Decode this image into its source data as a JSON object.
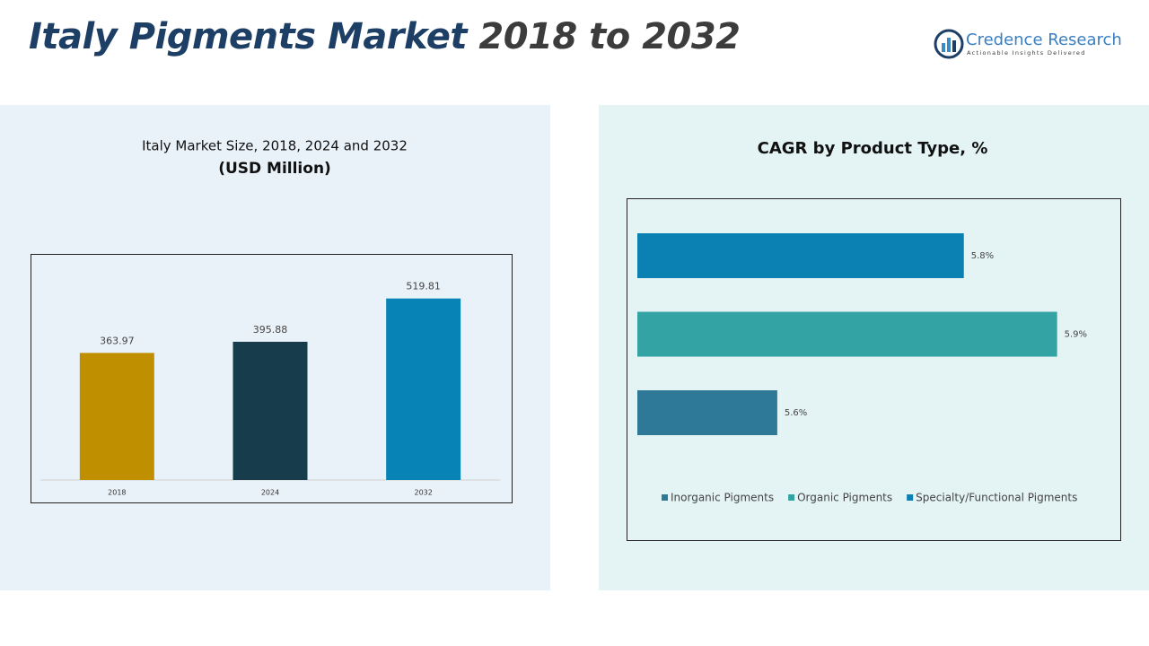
{
  "header": {
    "title_main": "Italy Pigments Market",
    "title_years": "2018 to 2032"
  },
  "logo": {
    "brand": "Credence Research",
    "tagline": "Actionable Insights Delivered"
  },
  "chart_data": [
    {
      "type": "bar",
      "title": "Italy Market Size, 2018, 2024 and 2032",
      "subtitle": "(USD Million)",
      "categories": [
        "2018",
        "2024",
        "2032"
      ],
      "values": [
        363.97,
        395.88,
        519.81
      ],
      "colors": [
        "#c08f00",
        "#173d4d",
        "#0784b5"
      ],
      "ylim": [
        0,
        650
      ]
    },
    {
      "type": "hbar",
      "title": "CAGR by Product Type, %",
      "xlim": [
        5.45,
        5.96
      ],
      "legend": "bottom",
      "series": [
        {
          "name": "Inorganic Pigments",
          "color": "#2e7898",
          "values": [
            5.6
          ],
          "value_labels": [
            "5.6%"
          ]
        },
        {
          "name": "Organic Pigments",
          "color": "#33a4a3",
          "values": [
            5.9
          ],
          "value_labels": [
            "5.9%"
          ]
        },
        {
          "name": "Specialty/Functional Pigments",
          "color": "#0a80b3",
          "values": [
            5.8
          ],
          "value_labels": [
            "5.8%"
          ]
        }
      ]
    }
  ]
}
